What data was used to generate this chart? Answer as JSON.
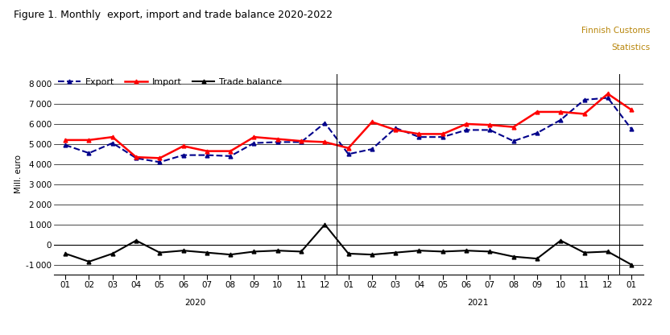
{
  "title": "Figure 1. Monthly  export, import and trade balance 2020-2022",
  "watermark_line1": "Finnish Customs",
  "watermark_line2": "Statistics",
  "ylabel": "Mill. euro",
  "tick_labels": [
    "01",
    "02",
    "03",
    "04",
    "05",
    "06",
    "07",
    "08",
    "09",
    "10",
    "11",
    "12",
    "01",
    "02",
    "03",
    "04",
    "05",
    "06",
    "07",
    "08",
    "09",
    "10",
    "11",
    "12",
    "01"
  ],
  "year_labels": [
    "2020",
    "2021",
    "2022"
  ],
  "export": [
    4950,
    4550,
    5050,
    4300,
    4100,
    4450,
    4450,
    4400,
    5050,
    5100,
    5100,
    6050,
    4500,
    4750,
    5800,
    5350,
    5350,
    5700,
    5700,
    5150,
    5550,
    6200,
    7200,
    7300,
    5750
  ],
  "import": [
    5200,
    5200,
    5350,
    4350,
    4300,
    4900,
    4650,
    4650,
    5350,
    5250,
    5150,
    5100,
    4800,
    6100,
    5700,
    5500,
    5500,
    6000,
    5950,
    5850,
    6600,
    6600,
    6500,
    7500,
    6700
  ],
  "trade_balance": [
    -450,
    -850,
    -450,
    200,
    -400,
    -300,
    -400,
    -500,
    -350,
    -300,
    -350,
    1000,
    -450,
    -500,
    -400,
    -300,
    -350,
    -300,
    -350,
    -600,
    -700,
    200,
    -400,
    -350,
    -1000
  ],
  "export_color": "#00008B",
  "import_color": "#FF0000",
  "trade_balance_color": "#000000",
  "ylim": [
    -1500,
    8500
  ],
  "yticks": [
    -1000,
    0,
    1000,
    2000,
    3000,
    4000,
    5000,
    6000,
    7000,
    8000
  ],
  "xlim": [
    -0.5,
    24.5
  ],
  "background_color": "#FFFFFF",
  "grid_color": "#000000",
  "title_color": "#000000",
  "watermark_color": "#B8860B",
  "title_fontsize": 9.0,
  "axis_fontsize": 7.5,
  "legend_fontsize": 8.0,
  "watermark_fontsize": 7.5
}
